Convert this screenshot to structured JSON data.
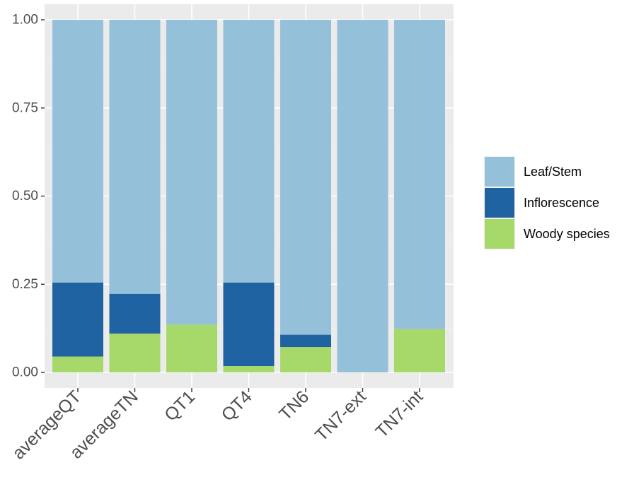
{
  "chart_data": {
    "type": "bar",
    "stacked": true,
    "title": "",
    "xlabel": "",
    "ylabel": "",
    "ylim": [
      0,
      1.0
    ],
    "y_ticks": [
      0.0,
      0.25,
      0.5,
      0.75,
      1.0
    ],
    "y_tick_labels": [
      "0.00",
      "0.25",
      "0.50",
      "0.75",
      "1.00"
    ],
    "categories": [
      "averageQT",
      "averageTN",
      "QT1",
      "QT4",
      "TN6",
      "TN7-ext",
      "TN7-int"
    ],
    "series": [
      {
        "name": "Woody species",
        "color": "#a6d96a",
        "values": [
          0.045,
          0.11,
          0.135,
          0.018,
          0.072,
          0.0,
          0.123
        ]
      },
      {
        "name": "Inflorescence",
        "color": "#1f63a3",
        "values": [
          0.21,
          0.113,
          0.0,
          0.237,
          0.035,
          0.0,
          0.0
        ]
      },
      {
        "name": "Leaf/Stem",
        "color": "#95c0da",
        "values": [
          0.745,
          0.777,
          0.865,
          0.745,
          0.893,
          1.0,
          0.877
        ]
      }
    ],
    "legend": {
      "position": "right",
      "entries": [
        "Leaf/Stem",
        "Inflorescence",
        "Woody species"
      ]
    },
    "grid": true,
    "panel_background": "#ebebeb"
  }
}
